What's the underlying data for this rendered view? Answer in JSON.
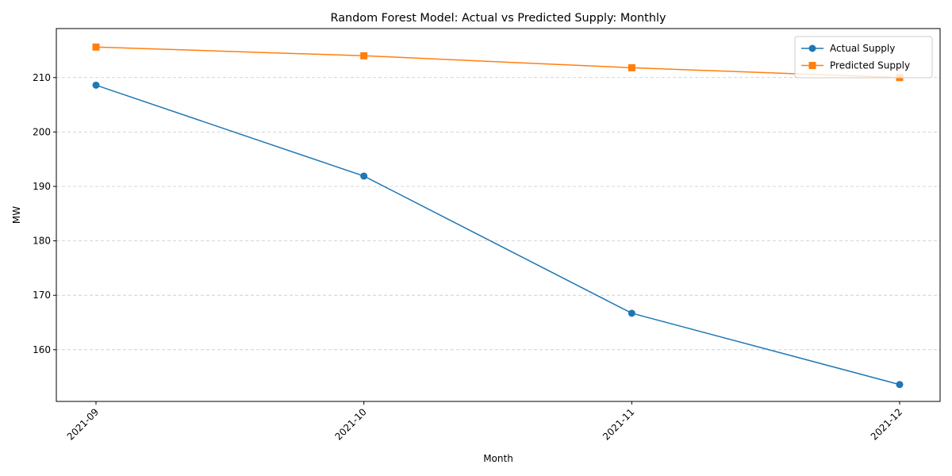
{
  "chart_data": {
    "type": "line",
    "title": "Random Forest Model: Actual vs Predicted Supply: Monthly",
    "xlabel": "Month",
    "ylabel": "MW",
    "categories": [
      "2021-09",
      "2021-10",
      "2021-11",
      "2021-12"
    ],
    "ylim": [
      150.5,
      219.0
    ],
    "yticks": [
      160,
      170,
      180,
      190,
      200,
      210
    ],
    "grid": "y-dashed",
    "legend_position": "top-right",
    "series": [
      {
        "name": "Actual Supply",
        "values": [
          208.6,
          191.9,
          166.7,
          153.6
        ],
        "color": "#1f77b4",
        "marker": "circle"
      },
      {
        "name": "Predicted Supply",
        "values": [
          215.6,
          214.0,
          211.8,
          210.0
        ],
        "color": "#ff7f0e",
        "marker": "square"
      }
    ]
  }
}
